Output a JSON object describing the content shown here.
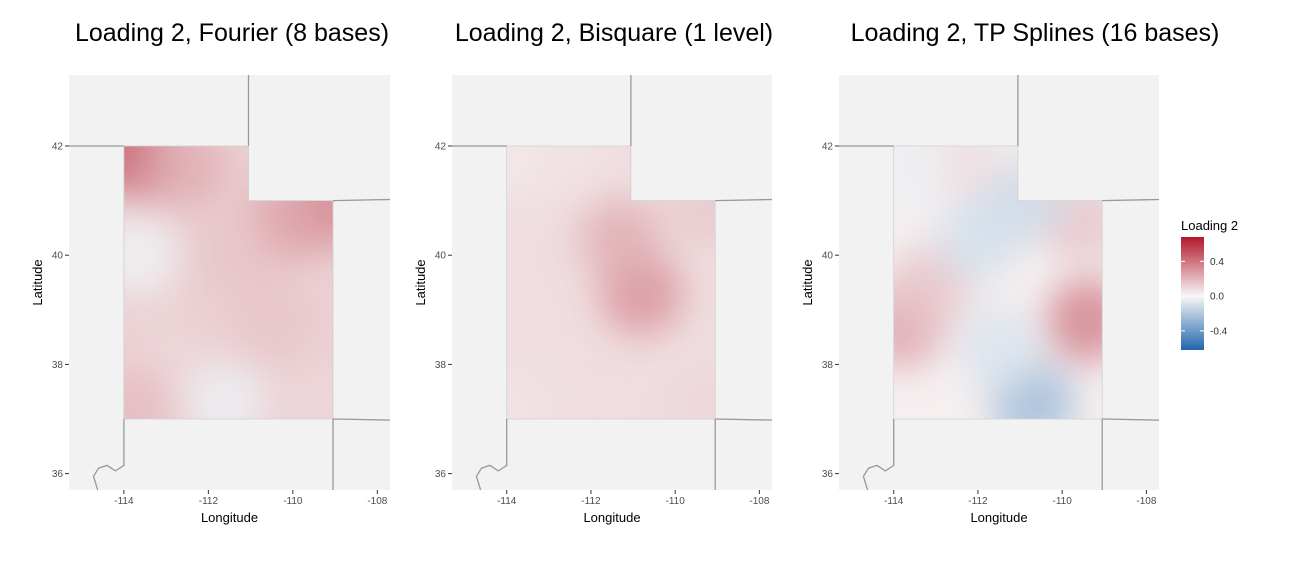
{
  "chart_data": [
    {
      "type": "heatmap",
      "title": "Loading 2, Fourier (8 bases)",
      "xlabel": "Longitude",
      "ylabel": "Latitude",
      "xlim": [
        -115.3,
        -107.7
      ],
      "ylim": [
        35.7,
        43.3
      ],
      "xticks": [
        -114,
        -112,
        -110,
        -108
      ],
      "yticks": [
        36,
        38,
        40,
        42
      ],
      "xtick_labels": [
        "-114",
        "-112",
        "-110",
        "-108"
      ],
      "ytick_labels": [
        "36",
        "38",
        "40",
        "42"
      ],
      "grid": false,
      "field": [
        {
          "lon": -113.9,
          "lat": 41.9,
          "value": 0.6
        },
        {
          "lon": -113.5,
          "lat": 41.7,
          "value": 0.35
        },
        {
          "lon": -112.5,
          "lat": 41.6,
          "value": 0.22
        },
        {
          "lon": -109.2,
          "lat": 40.9,
          "value": 0.35
        },
        {
          "lon": -110.2,
          "lat": 40.6,
          "value": 0.25
        },
        {
          "lon": -111.5,
          "lat": 40.0,
          "value": 0.15
        },
        {
          "lon": -113.7,
          "lat": 40.0,
          "value": -0.02
        },
        {
          "lon": -110.5,
          "lat": 38.8,
          "value": 0.15
        },
        {
          "lon": -113.0,
          "lat": 38.0,
          "value": 0.1
        },
        {
          "lon": -111.6,
          "lat": 37.3,
          "value": -0.03
        },
        {
          "lon": -109.3,
          "lat": 37.3,
          "value": 0.1
        },
        {
          "lon": -113.8,
          "lat": 37.2,
          "value": 0.18
        }
      ]
    },
    {
      "type": "heatmap",
      "title": "Loading 2, Bisquare (1 level)",
      "xlabel": "Longitude",
      "ylabel": "Latitude",
      "xlim": [
        -115.3,
        -107.7
      ],
      "ylim": [
        35.7,
        43.3
      ],
      "xticks": [
        -114,
        -112,
        -110,
        -108
      ],
      "yticks": [
        36,
        38,
        40,
        42
      ],
      "xtick_labels": [
        "-114",
        "-112",
        "-110",
        "-108"
      ],
      "ytick_labels": [
        "36",
        "38",
        "40",
        "42"
      ],
      "grid": false,
      "field": [
        {
          "lon": -110.8,
          "lat": 39.3,
          "value": 0.3
        },
        {
          "lon": -111.3,
          "lat": 40.3,
          "value": 0.22
        },
        {
          "lon": -113.8,
          "lat": 41.8,
          "value": 0.04
        },
        {
          "lon": -113.8,
          "lat": 37.2,
          "value": 0.06
        },
        {
          "lon": -109.2,
          "lat": 37.2,
          "value": 0.1
        },
        {
          "lon": -109.2,
          "lat": 40.9,
          "value": 0.14
        },
        {
          "lon": -112.5,
          "lat": 41.8,
          "value": 0.06
        }
      ]
    },
    {
      "type": "heatmap",
      "title": "Loading 2, TP Splines (16 bases)",
      "xlabel": "Longitude",
      "ylabel": "Latitude",
      "xlim": [
        -115.3,
        -107.7
      ],
      "ylim": [
        35.7,
        43.3
      ],
      "xticks": [
        -114,
        -112,
        -110,
        -108
      ],
      "yticks": [
        36,
        38,
        40,
        42
      ],
      "xtick_labels": [
        "-114",
        "-112",
        "-110",
        "-108"
      ],
      "ytick_labels": [
        "36",
        "38",
        "40",
        "42"
      ],
      "grid": false,
      "field": [
        {
          "lon": -113.8,
          "lat": 38.7,
          "value": 0.25
        },
        {
          "lon": -113.2,
          "lat": 39.4,
          "value": 0.15
        },
        {
          "lon": -109.4,
          "lat": 38.8,
          "value": 0.35
        },
        {
          "lon": -109.5,
          "lat": 40.6,
          "value": 0.15
        },
        {
          "lon": -112.0,
          "lat": 40.3,
          "value": -0.1
        },
        {
          "lon": -110.9,
          "lat": 41.0,
          "value": -0.12
        },
        {
          "lon": -110.7,
          "lat": 37.3,
          "value": -0.25
        },
        {
          "lon": -111.5,
          "lat": 38.3,
          "value": -0.08
        },
        {
          "lon": -112.5,
          "lat": 41.8,
          "value": 0.08
        },
        {
          "lon": -113.7,
          "lat": 41.6,
          "value": -0.03
        }
      ]
    }
  ],
  "legend": {
    "title": "Loading 2",
    "labels": [
      "0.4",
      "0.0",
      "-0.4"
    ],
    "ticks": [
      0.4,
      0.0,
      -0.4
    ],
    "range": [
      -0.62,
      0.68
    ],
    "colors": {
      "low": "#2166ac",
      "mid": "#f7f7f7",
      "high": "#b2182b"
    },
    "placement": "right"
  },
  "colors": {
    "panel_background": "#f2f2f2",
    "border_lines": "#999999",
    "map_outline": "#cfcfcf"
  }
}
